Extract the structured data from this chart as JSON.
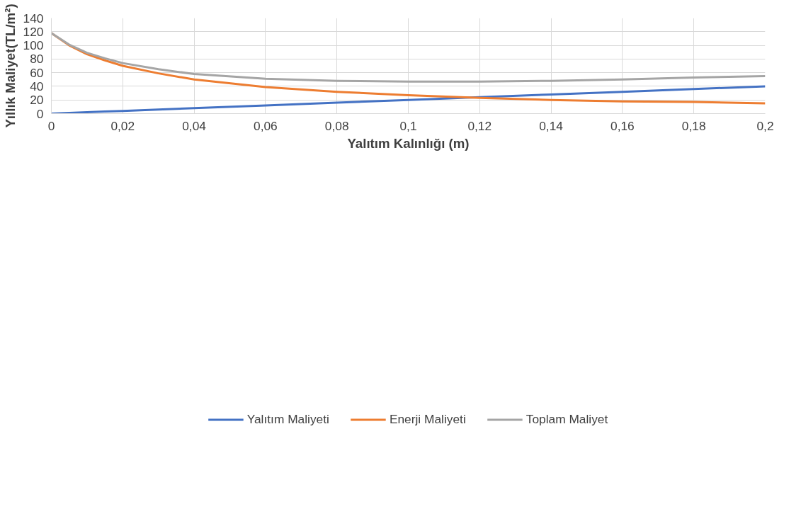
{
  "chart_data": {
    "type": "line",
    "xlabel": "Yalıtım Kalınlığı (m)",
    "ylabel": "Yıllık Maliyet(TL/m²)",
    "x": [
      0,
      0.005,
      0.01,
      0.015,
      0.02,
      0.03,
      0.04,
      0.06,
      0.08,
      0.1,
      0.12,
      0.14,
      0.16,
      0.18,
      0.2
    ],
    "series": [
      {
        "name": "Yalıtım Maliyeti",
        "color": "#4472c4",
        "values": [
          0,
          1,
          2,
          3,
          4,
          6,
          8,
          12,
          16,
          20,
          24,
          28,
          32,
          36,
          40
        ]
      },
      {
        "name": "Enerji Maliyeti",
        "color": "#ed7d31",
        "values": [
          118,
          100,
          87,
          78,
          70,
          59,
          50,
          39,
          32,
          27,
          23,
          20,
          18,
          17,
          15
        ]
      },
      {
        "name": "Toplam Maliyet",
        "color": "#a5a5a5",
        "values": [
          118,
          101,
          89,
          81,
          74,
          65,
          58,
          51,
          48,
          47,
          47,
          48,
          50,
          53,
          55
        ]
      }
    ],
    "xlim": [
      0,
      0.2
    ],
    "ylim": [
      0,
      140
    ],
    "xticks": [
      0,
      {
        "value": 0.02,
        "label": "0,02"
      },
      {
        "value": 0.04,
        "label": "0,04"
      },
      {
        "value": 0.06,
        "label": "0,06"
      },
      {
        "value": 0.08,
        "label": "0,08"
      },
      {
        "value": 0.1,
        "label": "0,1"
      },
      {
        "value": 0.12,
        "label": "0,12"
      },
      {
        "value": 0.14,
        "label": "0,14"
      },
      {
        "value": 0.16,
        "label": "0,16"
      },
      {
        "value": 0.18,
        "label": "0,18"
      },
      {
        "value": 0.2,
        "label": "0,2"
      }
    ],
    "yticks": [
      0,
      20,
      40,
      60,
      80,
      100,
      120,
      140
    ],
    "grid": true,
    "legend": "bottom",
    "marker": "none",
    "line_style": "solid"
  }
}
